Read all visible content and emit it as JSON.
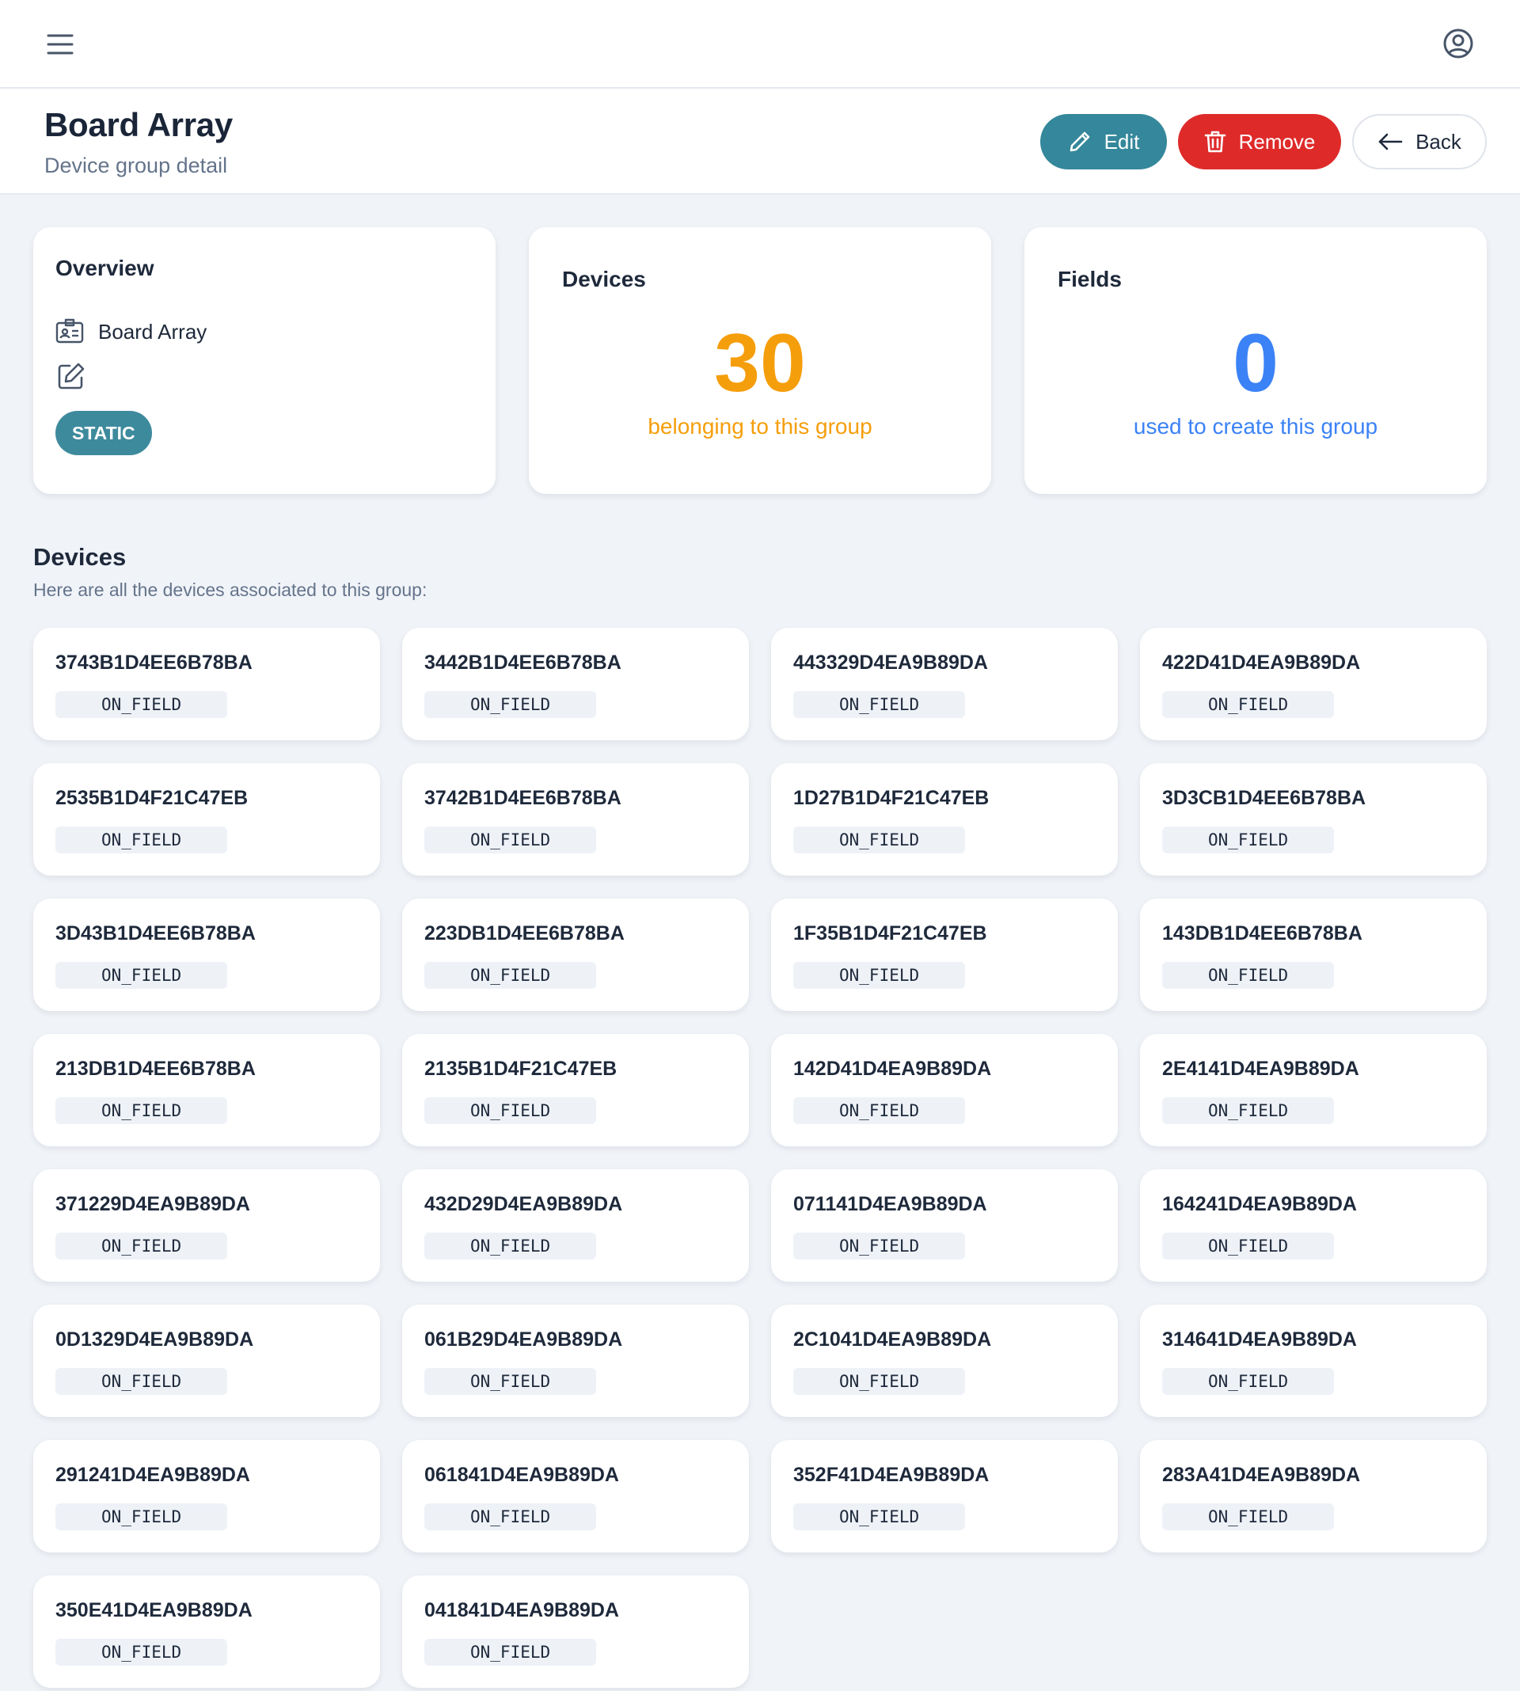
{
  "header": {
    "menu_icon": "menu-icon",
    "profile_icon": "user-circle-icon"
  },
  "page": {
    "title": "Board Array",
    "subtitle": "Device group detail",
    "actions": {
      "edit": "Edit",
      "remove": "Remove",
      "back": "Back"
    }
  },
  "colors": {
    "accent": "#35879b",
    "danger": "#df2a2a",
    "devices_number": "#f59e0b",
    "fields_number": "#3b82f6"
  },
  "overview": {
    "heading": "Overview",
    "name": "Board Array",
    "type_badge": "STATIC"
  },
  "devices_stat": {
    "heading": "Devices",
    "count": "30",
    "caption": "belonging to this group"
  },
  "fields_stat": {
    "heading": "Fields",
    "count": "0",
    "caption": "used to create this group"
  },
  "devices_section": {
    "title": "Devices",
    "description": "Here are all the devices associated to this group:"
  },
  "devices": [
    {
      "id": "3743B1D4EE6B78BA",
      "status": "ON_FIELD"
    },
    {
      "id": "3442B1D4EE6B78BA",
      "status": "ON_FIELD"
    },
    {
      "id": "443329D4EA9B89DA",
      "status": "ON_FIELD"
    },
    {
      "id": "422D41D4EA9B89DA",
      "status": "ON_FIELD"
    },
    {
      "id": "2535B1D4F21C47EB",
      "status": "ON_FIELD"
    },
    {
      "id": "3742B1D4EE6B78BA",
      "status": "ON_FIELD"
    },
    {
      "id": "1D27B1D4F21C47EB",
      "status": "ON_FIELD"
    },
    {
      "id": "3D3CB1D4EE6B78BA",
      "status": "ON_FIELD"
    },
    {
      "id": "3D43B1D4EE6B78BA",
      "status": "ON_FIELD"
    },
    {
      "id": "223DB1D4EE6B78BA",
      "status": "ON_FIELD"
    },
    {
      "id": "1F35B1D4F21C47EB",
      "status": "ON_FIELD"
    },
    {
      "id": "143DB1D4EE6B78BA",
      "status": "ON_FIELD"
    },
    {
      "id": "213DB1D4EE6B78BA",
      "status": "ON_FIELD"
    },
    {
      "id": "2135B1D4F21C47EB",
      "status": "ON_FIELD"
    },
    {
      "id": "142D41D4EA9B89DA",
      "status": "ON_FIELD"
    },
    {
      "id": "2E4141D4EA9B89DA",
      "status": "ON_FIELD"
    },
    {
      "id": "371229D4EA9B89DA",
      "status": "ON_FIELD"
    },
    {
      "id": "432D29D4EA9B89DA",
      "status": "ON_FIELD"
    },
    {
      "id": "071141D4EA9B89DA",
      "status": "ON_FIELD"
    },
    {
      "id": "164241D4EA9B89DA",
      "status": "ON_FIELD"
    },
    {
      "id": "0D1329D4EA9B89DA",
      "status": "ON_FIELD"
    },
    {
      "id": "061B29D4EA9B89DA",
      "status": "ON_FIELD"
    },
    {
      "id": "2C1041D4EA9B89DA",
      "status": "ON_FIELD"
    },
    {
      "id": "314641D4EA9B89DA",
      "status": "ON_FIELD"
    },
    {
      "id": "291241D4EA9B89DA",
      "status": "ON_FIELD"
    },
    {
      "id": "061841D4EA9B89DA",
      "status": "ON_FIELD"
    },
    {
      "id": "352F41D4EA9B89DA",
      "status": "ON_FIELD"
    },
    {
      "id": "283A41D4EA9B89DA",
      "status": "ON_FIELD"
    },
    {
      "id": "350E41D4EA9B89DA",
      "status": "ON_FIELD"
    },
    {
      "id": "041841D4EA9B89DA",
      "status": "ON_FIELD"
    }
  ]
}
